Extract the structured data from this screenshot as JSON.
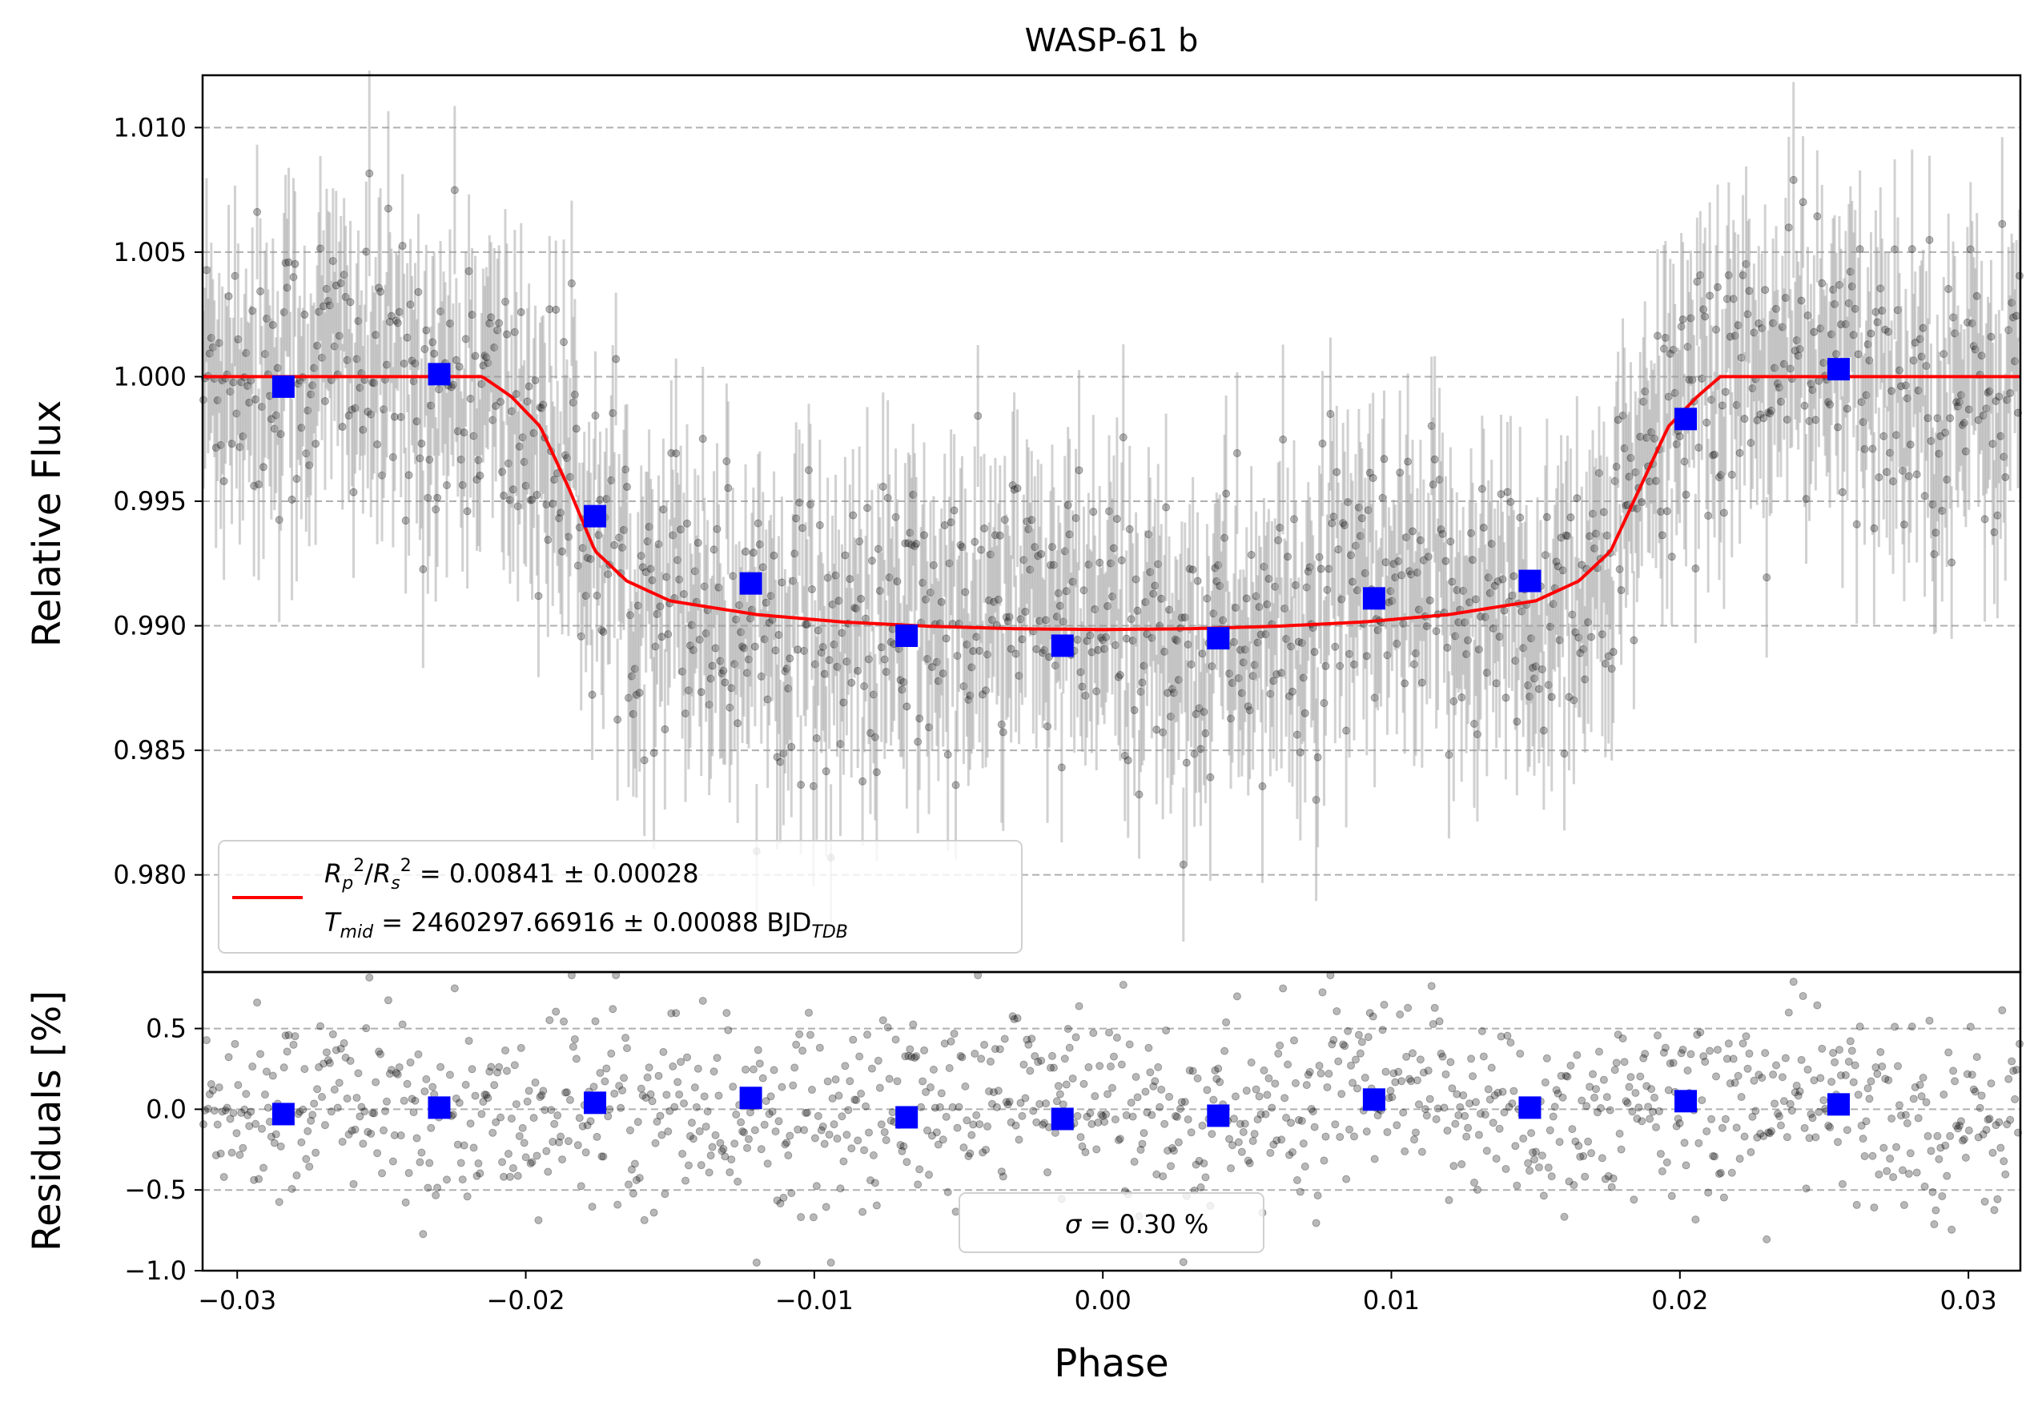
{
  "chart_data": [
    {
      "type": "scatter",
      "title": "WASP-61 b",
      "xlabel": "",
      "ylabel": "Relative Flux",
      "xlim": [
        -0.0312,
        0.0318
      ],
      "ylim": [
        0.9761,
        1.0121
      ],
      "yticks": [
        {
          "value": 0.98,
          "label": "0.980"
        },
        {
          "value": 0.985,
          "label": "0.985"
        },
        {
          "value": 0.99,
          "label": "0.990"
        },
        {
          "value": 0.995,
          "label": "0.995"
        },
        {
          "value": 1.0,
          "label": "1.000"
        },
        {
          "value": 1.005,
          "label": "1.005"
        },
        {
          "value": 1.01,
          "label": "1.010"
        }
      ],
      "grid": "horizontal dashed",
      "colors": {
        "data": "#000000",
        "error_bars": "#999999",
        "model": "#ff0000",
        "binned": "#0000ff",
        "grid": "#b0b0b0"
      },
      "model": {
        "name_line1": "R_p²/R_s² = 0.00841 ± 0.00028",
        "name_line2": "T_mid = 2460297.66916 ± 0.00088 BJD_TDB",
        "x": [
          -0.0312,
          -0.0215,
          -0.0205,
          -0.0195,
          -0.0185,
          -0.0176,
          -0.0165,
          -0.015,
          -0.012,
          -0.009,
          -0.006,
          -0.003,
          0.0,
          0.003,
          0.006,
          0.009,
          0.012,
          0.015,
          0.0165,
          0.0176,
          0.0186,
          0.0196,
          0.0206,
          0.0214,
          0.0318
        ],
        "y": [
          1.0,
          1.0,
          0.9992,
          0.998,
          0.9955,
          0.993,
          0.9918,
          0.991,
          0.99045,
          0.99015,
          0.98998,
          0.98988,
          0.98985,
          0.98988,
          0.98998,
          0.99015,
          0.99045,
          0.991,
          0.9918,
          0.993,
          0.9955,
          0.998,
          0.9992,
          1.0,
          1.0
        ]
      },
      "binned": {
        "x": [
          -0.0284,
          -0.023,
          -0.0176,
          -0.0122,
          -0.0068,
          -0.0014,
          0.004,
          0.0094,
          0.0148,
          0.0202,
          0.0255
        ],
        "y": [
          0.9996,
          1.0001,
          0.9944,
          0.9917,
          0.9896,
          0.9892,
          0.9895,
          0.9911,
          0.9918,
          0.9983,
          1.0003
        ]
      },
      "raw_points": {
        "count": 1150,
        "scatter_pct": 0.3,
        "error_bar": 0.0032
      },
      "legend": {
        "placement": "lower-left",
        "line1_prefix": "R",
        "line1_body": " = 0.00841 ± 0.00028",
        "line2_prefix": "T",
        "line2_sub": "mid",
        "line2_body": " = 2460297.66916 ± 0.00088 BJD",
        "line2_tail_sub": "TDB"
      }
    },
    {
      "type": "scatter",
      "title": "",
      "xlabel": "Phase",
      "ylabel": "Residuals [%]",
      "xlim": [
        -0.0312,
        0.0318
      ],
      "ylim": [
        -1.0,
        0.85
      ],
      "xticks": [
        {
          "value": -0.03,
          "label": "−0.03"
        },
        {
          "value": -0.02,
          "label": "−0.02"
        },
        {
          "value": -0.01,
          "label": "−0.01"
        },
        {
          "value": 0.0,
          "label": "0.00"
        },
        {
          "value": 0.01,
          "label": "0.01"
        },
        {
          "value": 0.02,
          "label": "0.02"
        },
        {
          "value": 0.03,
          "label": "0.03"
        }
      ],
      "yticks": [
        {
          "value": -1.0,
          "label": "−1.0"
        },
        {
          "value": -0.5,
          "label": "−0.5"
        },
        {
          "value": 0.0,
          "label": "0.0"
        },
        {
          "value": 0.5,
          "label": "0.5"
        }
      ],
      "grid": "horizontal dashed",
      "binned": {
        "x": [
          -0.0284,
          -0.023,
          -0.0176,
          -0.0122,
          -0.0068,
          -0.0014,
          0.004,
          0.0094,
          0.0148,
          0.0202,
          0.0255
        ],
        "y": [
          -0.03,
          0.01,
          0.04,
          0.07,
          -0.05,
          -0.06,
          -0.04,
          0.06,
          0.01,
          0.05,
          0.03
        ]
      },
      "legend": {
        "placement": "bottom-center",
        "symbol": "σ",
        "label": " = 0.30 %"
      }
    }
  ]
}
